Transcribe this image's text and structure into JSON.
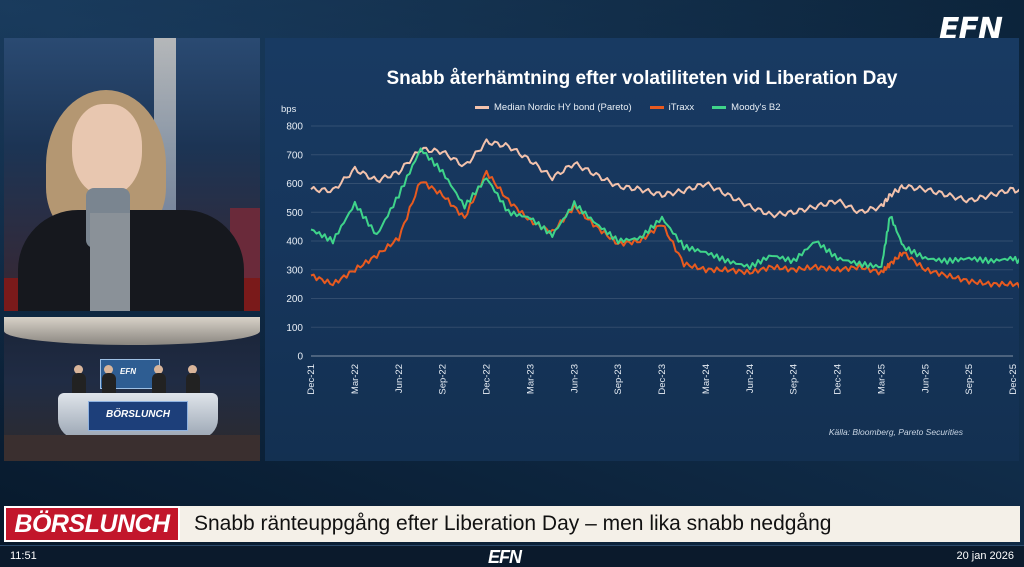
{
  "channel": {
    "logo": "EFN",
    "logo_bottom": "EFN"
  },
  "studio": {
    "screen_text": "EFN",
    "desk_text": "BÖRSLUNCH"
  },
  "chart_data": {
    "type": "line",
    "title": "Snabb återhämtning efter volatiliteten vid Liberation Day",
    "ylabel": "bps",
    "xlabel": "",
    "ylim": [
      0,
      800
    ],
    "yticks": [
      0,
      100,
      200,
      300,
      400,
      500,
      600,
      700,
      800
    ],
    "xticks": [
      "Dec-21",
      "Mar-22",
      "Jun-22",
      "Sep-22",
      "Dec-22",
      "Mar-23",
      "Jun-23",
      "Sep-23",
      "Dec-23",
      "Mar-24",
      "Jun-24",
      "Sep-24",
      "Dec-24",
      "Mar-25",
      "Jun-25",
      "Sep-25",
      "Dec-25"
    ],
    "x": [
      0,
      0.5,
      1,
      1.5,
      2,
      2.5,
      3,
      3.5,
      4,
      4.5,
      5,
      5.5,
      6,
      6.5,
      7,
      7.5,
      8,
      8.5,
      9,
      9.5,
      10,
      10.5,
      11,
      11.5,
      12,
      12.5,
      13,
      13.2,
      13.5,
      14,
      14.5,
      15,
      15.5,
      16,
      16.4
    ],
    "series": [
      {
        "name": "Median Nordic HY bond (Pareto)",
        "color": "#f3c2ac",
        "values": [
          580,
          575,
          650,
          610,
          640,
          720,
          710,
          660,
          745,
          730,
          680,
          620,
          670,
          630,
          590,
          580,
          560,
          575,
          600,
          560,
          520,
          490,
          500,
          520,
          540,
          500,
          520,
          560,
          590,
          580,
          560,
          540,
          560,
          580,
          555
        ]
      },
      {
        "name": "iTraxx",
        "color": "#e85a1f",
        "values": [
          280,
          250,
          300,
          350,
          410,
          610,
          560,
          480,
          640,
          540,
          470,
          430,
          520,
          450,
          390,
          400,
          460,
          320,
          300,
          300,
          290,
          310,
          300,
          310,
          300,
          310,
          290,
          320,
          360,
          300,
          280,
          260,
          250,
          250,
          240
        ]
      },
      {
        "name": "Moody's B2",
        "color": "#3fd48a",
        "values": [
          440,
          400,
          530,
          420,
          560,
          720,
          640,
          520,
          620,
          500,
          480,
          420,
          530,
          460,
          400,
          410,
          480,
          380,
          360,
          330,
          310,
          350,
          330,
          400,
          340,
          320,
          310,
          490,
          380,
          340,
          330,
          340,
          330,
          340,
          310
        ]
      }
    ]
  },
  "source_note": "Källa: Bloomberg, Pareto Securities",
  "lower_third": {
    "show": "BÖRSLUNCH",
    "headline": "Snabb ränteuppgång efter Liberation Day – men lika snabb nedgång"
  },
  "bottom_bar": {
    "time": "11:51",
    "date": "20 jan 2026"
  }
}
